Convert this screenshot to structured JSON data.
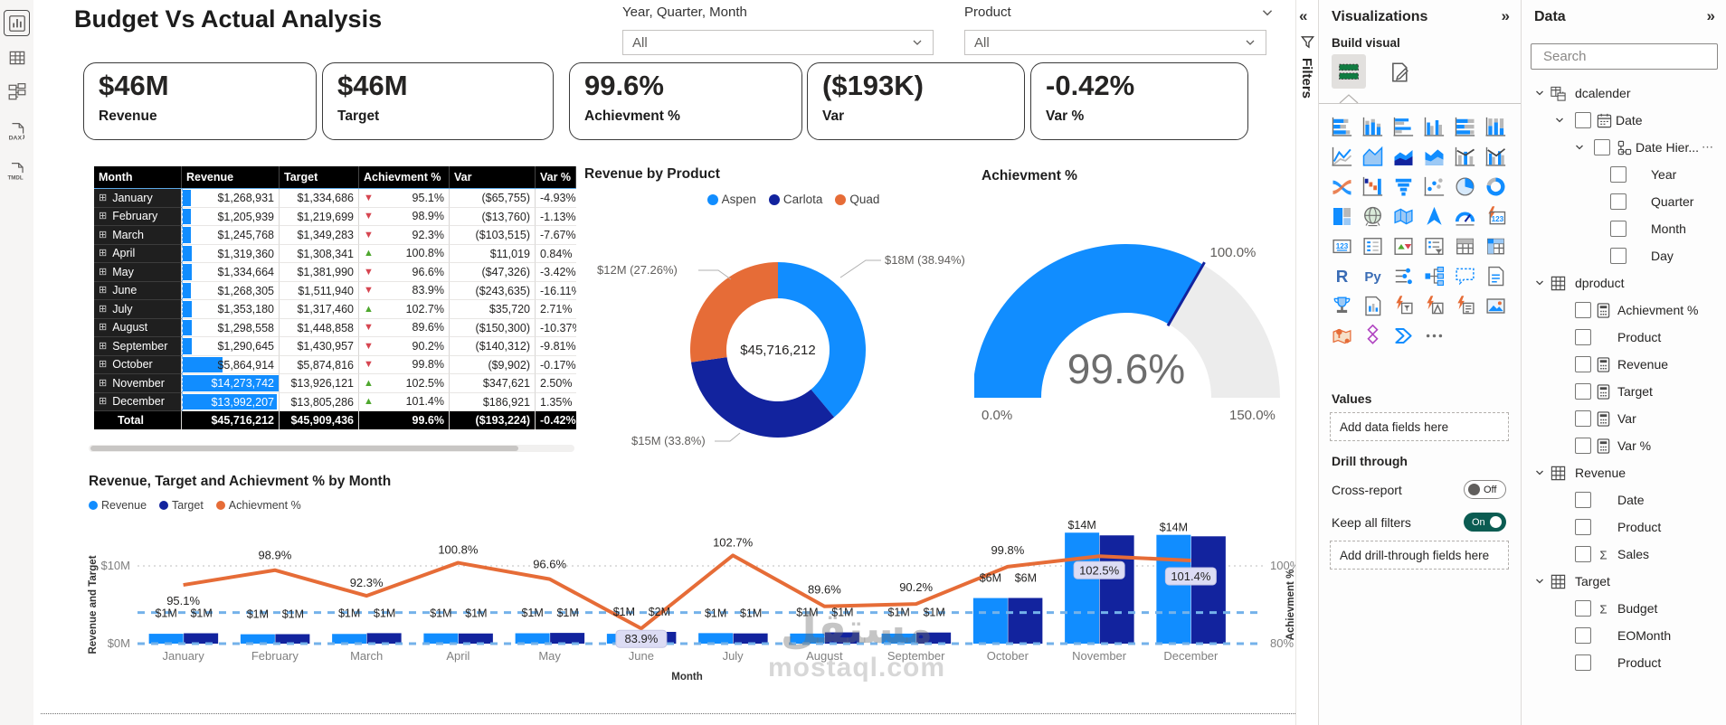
{
  "left_rail": {
    "items": [
      {
        "name": "report-view",
        "glyph": "report",
        "selected": true
      },
      {
        "name": "table-view",
        "glyph": "grid",
        "selected": false
      },
      {
        "name": "model-view",
        "glyph": "model",
        "selected": false
      },
      {
        "name": "dax-query-view",
        "glyph": "dax",
        "label": "DAX",
        "selected": false
      },
      {
        "name": "tmdl-view",
        "glyph": "tmdl",
        "label": "TMDL",
        "selected": false
      }
    ]
  },
  "canvas": {
    "title": "Budget Vs Actual Analysis",
    "slicers": [
      {
        "label": "Year, Quarter, Month",
        "value": "All"
      },
      {
        "label": "Product",
        "value": "All"
      }
    ],
    "kpis": [
      {
        "value": "$46M",
        "label": "Revenue"
      },
      {
        "value": "$46M",
        "label": "Target"
      },
      {
        "value": "99.6%",
        "label": "Achievment %"
      },
      {
        "value": "($193K)",
        "label": "Var"
      },
      {
        "value": "-0.42%",
        "label": "Var %"
      }
    ],
    "table": {
      "columns": [
        "Month",
        "Revenue",
        "Target",
        "Achievment %",
        "Var",
        "Var %"
      ],
      "rows": [
        {
          "month": "January",
          "revenue": "$1,268,931",
          "target": "$1,334,686",
          "ach": "95.1%",
          "dir": "down",
          "var": "($65,755)",
          "var_pct": "-4.93%",
          "bar": 0.089
        },
        {
          "month": "February",
          "revenue": "$1,205,939",
          "target": "$1,219,699",
          "ach": "98.9%",
          "dir": "down",
          "var": "($13,760)",
          "var_pct": "-1.13%",
          "bar": 0.084
        },
        {
          "month": "March",
          "revenue": "$1,245,768",
          "target": "$1,349,283",
          "ach": "92.3%",
          "dir": "down",
          "var": "($103,515)",
          "var_pct": "-7.67%",
          "bar": 0.087
        },
        {
          "month": "April",
          "revenue": "$1,319,360",
          "target": "$1,308,341",
          "ach": "100.8%",
          "dir": "up",
          "var": "$11,019",
          "var_pct": "0.84%",
          "bar": 0.092
        },
        {
          "month": "May",
          "revenue": "$1,334,664",
          "target": "$1,381,990",
          "ach": "96.6%",
          "dir": "down",
          "var": "($47,326)",
          "var_pct": "-3.42%",
          "bar": 0.094
        },
        {
          "month": "June",
          "revenue": "$1,268,305",
          "target": "$1,511,940",
          "ach": "83.9%",
          "dir": "down",
          "var": "($243,635)",
          "var_pct": "-16.11%",
          "bar": 0.089
        },
        {
          "month": "July",
          "revenue": "$1,353,180",
          "target": "$1,317,460",
          "ach": "102.7%",
          "dir": "up",
          "var": "$35,720",
          "var_pct": "2.71%",
          "bar": 0.095
        },
        {
          "month": "August",
          "revenue": "$1,298,558",
          "target": "$1,448,858",
          "ach": "89.6%",
          "dir": "down",
          "var": "($150,300)",
          "var_pct": "-10.37%",
          "bar": 0.091
        },
        {
          "month": "September",
          "revenue": "$1,290,645",
          "target": "$1,430,957",
          "ach": "90.2%",
          "dir": "down",
          "var": "($140,312)",
          "var_pct": "-9.81%",
          "bar": 0.09
        },
        {
          "month": "October",
          "revenue": "$5,864,914",
          "target": "$5,874,816",
          "ach": "99.8%",
          "dir": "down",
          "var": "($9,902)",
          "var_pct": "-0.17%",
          "bar": 0.411
        },
        {
          "month": "November",
          "revenue": "$14,273,742",
          "target": "$13,926,121",
          "ach": "102.5%",
          "dir": "up",
          "var": "$347,621",
          "var_pct": "2.50%",
          "bar": 1.0
        },
        {
          "month": "December",
          "revenue": "$13,992,207",
          "target": "$13,805,286",
          "ach": "101.4%",
          "dir": "up",
          "var": "$186,921",
          "var_pct": "1.35%",
          "bar": 0.98
        }
      ],
      "total": {
        "month": "Total",
        "revenue": "$45,716,212",
        "target": "$45,909,436",
        "ach": "99.6%",
        "var": "($193,224)",
        "var_pct": "-0.42%"
      }
    },
    "donut": {
      "title": "Revenue by Product",
      "center": "$45,716,212",
      "slices": [
        {
          "name": "Aspen",
          "color": "#118DFF",
          "pct": 38.94,
          "label": "$18M (38.94%)"
        },
        {
          "name": "Carlota",
          "color": "#12239E",
          "pct": 33.8,
          "label": "$15M (33.8%)"
        },
        {
          "name": "Quad",
          "color": "#E66C37",
          "pct": 27.26,
          "label": "$12M (27.26%)"
        }
      ]
    },
    "gauge": {
      "title": "Achievment %",
      "value": 99.6,
      "min": 0,
      "max": 150,
      "target": 100,
      "value_label": "99.6%",
      "min_label": "0.0%",
      "max_label": "150.0%",
      "target_label": "100.0%",
      "color": "#118DFF",
      "track": "#ececec",
      "target_color": "#12239E"
    },
    "combo": {
      "title": "Revenue, Target and Achievment % by Month",
      "legend": [
        {
          "name": "Revenue",
          "color": "#118DFF"
        },
        {
          "name": "Target",
          "color": "#12239E"
        },
        {
          "name": "Achievment %",
          "color": "#E66C37"
        }
      ],
      "months": [
        "January",
        "February",
        "March",
        "April",
        "May",
        "June",
        "July",
        "August",
        "September",
        "October",
        "November",
        "December"
      ],
      "revenue_m": [
        1.269,
        1.206,
        1.246,
        1.319,
        1.335,
        1.268,
        1.353,
        1.299,
        1.291,
        5.865,
        14.274,
        13.992
      ],
      "target_m": [
        1.335,
        1.22,
        1.349,
        1.308,
        1.382,
        1.512,
        1.317,
        1.449,
        1.431,
        5.875,
        13.926,
        13.805
      ],
      "ach_pct": [
        95.1,
        98.9,
        92.3,
        100.8,
        96.6,
        83.9,
        102.7,
        89.6,
        90.2,
        99.8,
        102.5,
        101.4
      ],
      "ach_labels": [
        "95.1%",
        "98.9%",
        "92.3%",
        "100.8%",
        "96.6%",
        "83.9%",
        "102.7%",
        "89.6%",
        "90.2%",
        "99.8%",
        "102.5%",
        "101.4%"
      ],
      "bar_labels": [
        [
          "$1M",
          "$1M"
        ],
        [
          "$1M",
          "$1M"
        ],
        [
          "$1M",
          "$1M"
        ],
        [
          "$1M",
          "$1M"
        ],
        [
          "$1M",
          "$1M"
        ],
        [
          "$1M",
          "$2M"
        ],
        [
          "$1M",
          "$1M"
        ],
        [
          "$1M",
          "$1M"
        ],
        [
          "$1M",
          "$1M"
        ],
        [
          "$6M",
          "$6M"
        ],
        [
          "$14M",
          null
        ],
        [
          "$14M",
          null
        ]
      ],
      "badges": [
        false,
        false,
        false,
        false,
        false,
        true,
        false,
        false,
        false,
        false,
        true,
        true
      ],
      "y_axis": {
        "title": "Revenue and Target",
        "ticks": [
          "$10M",
          "$0M"
        ]
      },
      "y2_axis": {
        "title": "Achievment %",
        "ticks": [
          "100%",
          "80%"
        ]
      },
      "x_axis": {
        "title": "Month"
      },
      "ref_lines": [
        88,
        80
      ],
      "ref_color": "#74b2ea"
    }
  },
  "filters_strip": {
    "label": "Filters"
  },
  "viz_pane": {
    "title": "Visualizations",
    "build_visual": "Build visual",
    "gallery": [
      {
        "name": "stacked-bar-chart-icon",
        "g": "sb"
      },
      {
        "name": "stacked-column-chart-icon",
        "g": "sc"
      },
      {
        "name": "clustered-bar-chart-icon",
        "g": "cb"
      },
      {
        "name": "clustered-column-chart-icon",
        "g": "cc"
      },
      {
        "name": "100-stacked-bar-chart-icon",
        "g": "sb100"
      },
      {
        "name": "100-stacked-column-chart-icon",
        "g": "sc100"
      },
      {
        "name": "line-chart-icon",
        "g": "line"
      },
      {
        "name": "area-chart-icon",
        "g": "area"
      },
      {
        "name": "stacked-area-chart-icon",
        "g": "sarea"
      },
      {
        "name": "100-stacked-area-chart-icon",
        "g": "warea"
      },
      {
        "name": "line-and-stacked-column-chart-icon",
        "g": "combo"
      },
      {
        "name": "line-and-clustered-column-chart-icon",
        "g": "combo2"
      },
      {
        "name": "ribbon-chart-icon",
        "g": "ribbon"
      },
      {
        "name": "waterfall-chart-icon",
        "g": "waterfall"
      },
      {
        "name": "funnel-chart-icon",
        "g": "funnel"
      },
      {
        "name": "scatter-chart-icon",
        "g": "scatter"
      },
      {
        "name": "pie-chart-icon",
        "g": "pie"
      },
      {
        "name": "donut-chart-icon",
        "g": "donut"
      },
      {
        "name": "treemap-icon",
        "g": "treemap"
      },
      {
        "name": "map-icon",
        "g": "globe"
      },
      {
        "name": "filled-map-icon",
        "g": "fmap"
      },
      {
        "name": "azure-map-icon",
        "g": "nav"
      },
      {
        "name": "gauge-icon",
        "g": "gaugei"
      },
      {
        "name": "kpi-icon",
        "g": "kpi123"
      },
      {
        "name": "card-icon",
        "g": "card123"
      },
      {
        "name": "multi-row-card-icon",
        "g": "mrow"
      },
      {
        "name": "kpi-indicator-icon",
        "g": "updown"
      },
      {
        "name": "slicer-icon",
        "g": "slicerI"
      },
      {
        "name": "table-icon",
        "g": "tblI"
      },
      {
        "name": "matrix-icon",
        "g": "matrix"
      },
      {
        "name": "r-script-icon",
        "g": "rI"
      },
      {
        "name": "python-script-icon",
        "g": "pyI"
      },
      {
        "name": "key-influencers-icon",
        "g": "infl"
      },
      {
        "name": "decomposition-tree-icon",
        "g": "decomp"
      },
      {
        "name": "qa-icon",
        "g": "qa"
      },
      {
        "name": "smart-narrative-icon",
        "g": "narr"
      },
      {
        "name": "metrics-icon",
        "g": "trophy"
      },
      {
        "name": "paginated-report-icon",
        "g": "prep"
      },
      {
        "name": "power-apps-icon",
        "g": "papps"
      },
      {
        "name": "power-automate-icon",
        "g": "pauto"
      },
      {
        "name": "scorecard-icon",
        "g": "pscore"
      },
      {
        "name": "image-icon",
        "g": "img"
      },
      {
        "name": "arcgis-map-icon",
        "g": "arcgis"
      },
      {
        "name": "power-apps-diamond-icon",
        "g": "pdiamond"
      },
      {
        "name": "power-automate-flow-icon",
        "g": "parrow"
      },
      {
        "name": "more-visuals-icon",
        "g": "more"
      }
    ],
    "values_label": "Values",
    "add_data": "Add data fields here",
    "drill_label": "Drill through",
    "cross_report": "Cross-report",
    "cross_state": "Off",
    "keep_filters": "Keep all filters",
    "keep_state": "On",
    "add_drill": "Add drill-through fields here"
  },
  "data_pane": {
    "title": "Data",
    "search_placeholder": "Search",
    "tree": [
      {
        "kind": "table",
        "chev": true,
        "cb": false,
        "icon": "tcal",
        "label": "dcalender"
      },
      {
        "kind": "l1",
        "chev": true,
        "cb": true,
        "icon": "cal",
        "label": "Date"
      },
      {
        "kind": "l2",
        "chev": true,
        "cb": true,
        "icon": "hier",
        "label": "Date Hier...",
        "more": true
      },
      {
        "kind": "l3",
        "chev": false,
        "cb": true,
        "icon": "",
        "label": "Year"
      },
      {
        "kind": "l3",
        "chev": false,
        "cb": true,
        "icon": "",
        "label": "Quarter"
      },
      {
        "kind": "l3",
        "chev": false,
        "cb": true,
        "icon": "",
        "label": "Month"
      },
      {
        "kind": "l3",
        "chev": false,
        "cb": true,
        "icon": "",
        "label": "Day"
      },
      {
        "kind": "table",
        "chev": true,
        "cb": false,
        "icon": "tbl",
        "label": "dproduct"
      },
      {
        "kind": "field",
        "chev": false,
        "cb": true,
        "icon": "calc",
        "label": "Achievment %"
      },
      {
        "kind": "field",
        "chev": false,
        "cb": true,
        "icon": "",
        "label": "Product"
      },
      {
        "kind": "field",
        "chev": false,
        "cb": true,
        "icon": "calc",
        "label": "Revenue"
      },
      {
        "kind": "field",
        "chev": false,
        "cb": true,
        "icon": "calc",
        "label": "Target"
      },
      {
        "kind": "field",
        "chev": false,
        "cb": true,
        "icon": "calc",
        "label": "Var"
      },
      {
        "kind": "field",
        "chev": false,
        "cb": true,
        "icon": "calc",
        "label": "Var %"
      },
      {
        "kind": "table",
        "chev": true,
        "cb": false,
        "icon": "tbl",
        "label": "Revenue"
      },
      {
        "kind": "field",
        "chev": false,
        "cb": true,
        "icon": "",
        "label": "Date"
      },
      {
        "kind": "field",
        "chev": false,
        "cb": true,
        "icon": "",
        "label": "Product"
      },
      {
        "kind": "field",
        "chev": false,
        "cb": true,
        "icon": "sigma",
        "label": "Sales"
      },
      {
        "kind": "table",
        "chev": true,
        "cb": false,
        "icon": "tbl",
        "label": "Target"
      },
      {
        "kind": "field",
        "chev": false,
        "cb": true,
        "icon": "sigma",
        "label": "Budget"
      },
      {
        "kind": "field",
        "chev": false,
        "cb": true,
        "icon": "",
        "label": "EOMonth"
      },
      {
        "kind": "field",
        "chev": false,
        "cb": true,
        "icon": "",
        "label": "Product"
      }
    ]
  },
  "watermark": {
    "line1": "مستقل",
    "line2": "mostaql.com"
  }
}
